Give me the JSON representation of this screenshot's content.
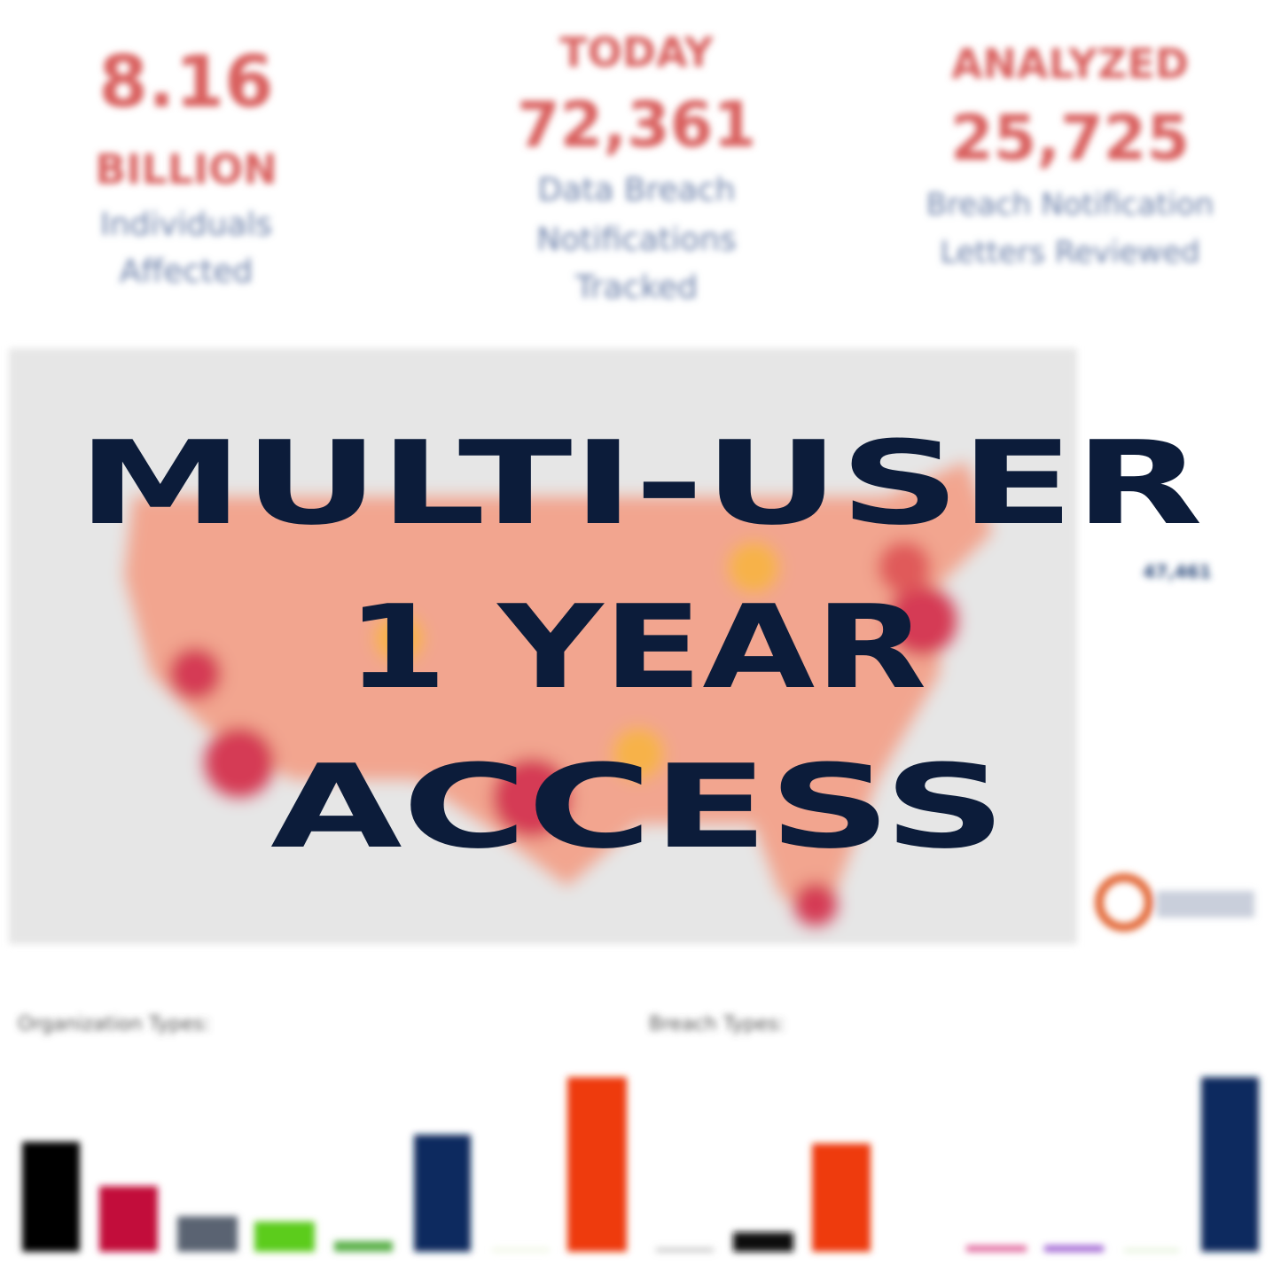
{
  "stats": [
    {
      "value": "8.16",
      "unit": "BILLION",
      "lines": [
        "Individuals",
        "Affected"
      ]
    },
    {
      "kicker": "TODAY",
      "value": "72,361",
      "lines": [
        "Data Breach",
        "Notifications",
        "Tracked"
      ]
    },
    {
      "kicker": "ANALYZED",
      "value": "25,725",
      "lines": [
        "Breach Notification",
        "Letters Reviewed"
      ]
    }
  ],
  "map_side": {
    "value": "47,461"
  },
  "sections": {
    "left": "Organization Types:",
    "right": "Breach Types:"
  },
  "overlay": [
    "MULTI-USER",
    "1 YEAR",
    "ACCESS"
  ]
}
